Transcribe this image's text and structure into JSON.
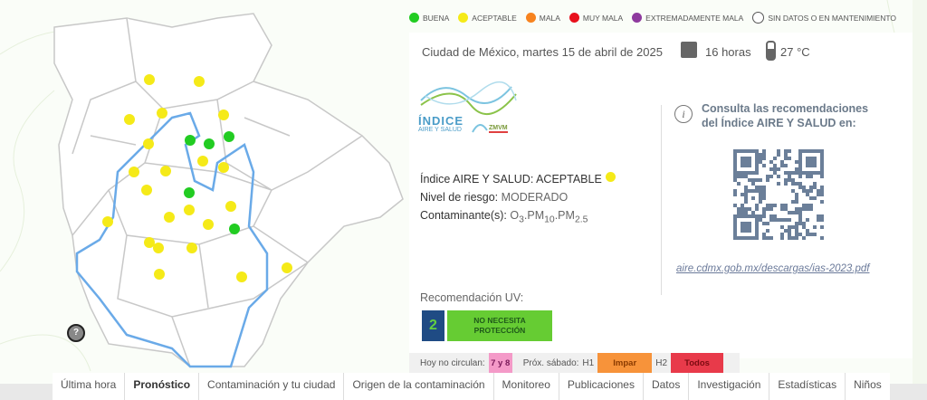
{
  "legend": [
    {
      "label": "BUENA",
      "color": "#22cc22"
    },
    {
      "label": "ACEPTABLE",
      "color": "#f5ea18"
    },
    {
      "label": "MALA",
      "color": "#f7831f"
    },
    {
      "label": "MUY MALA",
      "color": "#e8101c"
    },
    {
      "label": "EXTREMADAMENTE MALA",
      "color": "#8e3a9e"
    },
    {
      "label": "SIN DATOS O EN MANTENIMIENTO",
      "color": "#ffffff"
    }
  ],
  "header": {
    "date": "Ciudad de México, martes 15 de abril de 2025",
    "hours": "16 horas",
    "temperature": "27 °C"
  },
  "logo": {
    "line1": "ÍNDICE",
    "line2": "AIRE Y SALUD",
    "line3": "ZMVM"
  },
  "index": {
    "label": "Índice AIRE Y SALUD: ACEPTABLE",
    "risk_label": "Nivel de riesgo:",
    "risk_value": "MODERADO",
    "pollutants_label": "Contaminante(s):",
    "pollutants": [
      "O",
      "3",
      ".PM",
      "10",
      ".PM",
      "2.5"
    ]
  },
  "consult": {
    "text": "Consulta las recomendaciones del Índice AIRE Y SALUD en:",
    "link": "aire.cdmx.gob.mx/descargas/ias-2023.pdf"
  },
  "uv": {
    "label": "Recomendación UV:",
    "value": "2",
    "text": "NO NECESITA PROTECCIÓN"
  },
  "hoy_no_circula": {
    "label": "Hoy no circulan:",
    "plates": "7 y 8",
    "saturday_label": "Próx. sábado:",
    "h1": "H1",
    "h1_value": "Impar",
    "h2": "H2",
    "h2_value": "Todos"
  },
  "nav": [
    "Última hora",
    "Pronóstico",
    "Contaminación y tu ciudad",
    "Origen de la contaminación",
    "Monitoreo",
    "Publicaciones",
    "Datos",
    "Investigación",
    "Estadísticas",
    "Niños"
  ],
  "nav_active": "Pronóstico",
  "help": "?",
  "stations": [
    "aceptable",
    "aceptable",
    "aceptable",
    "aceptable",
    "aceptable",
    "aceptable",
    "aceptable",
    "aceptable",
    "aceptable",
    "aceptable",
    "aceptable",
    "aceptable",
    "aceptable",
    "aceptable",
    "aceptable",
    "aceptable",
    "aceptable",
    "aceptable",
    "aceptable",
    "aceptable",
    "aceptable",
    "aceptable",
    "buena",
    "buena",
    "buena",
    "buena",
    "buena"
  ]
}
